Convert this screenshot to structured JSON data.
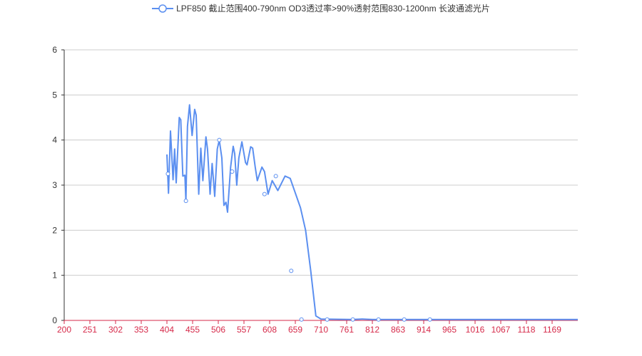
{
  "chart_data": {
    "type": "line",
    "series": [
      {
        "name": "LPF850 截止范围400-790nm OD3透过率>90%透射范围830-1200nm 长波通滤光片",
        "color": "#5b8ff0",
        "points": [
          [
            400,
            3.68
          ],
          [
            403,
            2.82
          ],
          [
            407,
            4.2
          ],
          [
            412,
            3.12
          ],
          [
            415,
            3.8
          ],
          [
            418,
            3.05
          ],
          [
            424,
            4.5
          ],
          [
            427,
            4.45
          ],
          [
            431,
            3.2
          ],
          [
            435,
            3.22
          ],
          [
            437,
            2.65
          ],
          [
            440,
            4.3
          ],
          [
            444,
            4.78
          ],
          [
            449,
            4.1
          ],
          [
            454,
            4.68
          ],
          [
            457,
            4.55
          ],
          [
            462,
            2.8
          ],
          [
            466,
            3.82
          ],
          [
            470,
            3.1
          ],
          [
            476,
            4.07
          ],
          [
            479,
            3.8
          ],
          [
            484,
            2.8
          ],
          [
            488,
            3.48
          ],
          [
            493,
            2.75
          ],
          [
            498,
            3.8
          ],
          [
            502,
            4.0
          ],
          [
            507,
            3.6
          ],
          [
            511,
            2.55
          ],
          [
            515,
            2.62
          ],
          [
            518,
            2.4
          ],
          [
            524,
            3.4
          ],
          [
            529,
            3.86
          ],
          [
            532,
            3.7
          ],
          [
            536,
            3.0
          ],
          [
            540,
            3.6
          ],
          [
            546,
            3.96
          ],
          [
            553,
            3.5
          ],
          [
            556,
            3.45
          ],
          [
            563,
            3.85
          ],
          [
            567,
            3.82
          ],
          [
            572,
            3.4
          ],
          [
            576,
            3.1
          ],
          [
            585,
            3.4
          ],
          [
            590,
            3.3
          ],
          [
            597,
            2.8
          ],
          [
            605,
            3.1
          ],
          [
            616,
            2.88
          ],
          [
            630,
            3.2
          ],
          [
            640,
            3.15
          ],
          [
            660,
            2.5
          ],
          [
            670,
            2.0
          ],
          [
            680,
            1.1
          ],
          [
            690,
            0.1
          ],
          [
            700,
            0.03
          ],
          [
            760,
            0.02
          ],
          [
            780,
            0.03
          ],
          [
            800,
            0.02
          ],
          [
            850,
            0.02
          ],
          [
            900,
            0.02
          ],
          [
            950,
            0.02
          ],
          [
            1000,
            0.02
          ],
          [
            1050,
            0.02
          ],
          [
            1100,
            0.02
          ],
          [
            1200,
            0.02
          ]
        ],
        "markers": [
          [
            402,
            3.25
          ],
          [
            437,
            2.65
          ],
          [
            502,
            4.0
          ],
          [
            527,
            3.3
          ],
          [
            590,
            2.8
          ],
          [
            612,
            3.2
          ],
          [
            642,
            1.1
          ],
          [
            662,
            0.02
          ],
          [
            712,
            0.02
          ],
          [
            762,
            0.02
          ],
          [
            812,
            0.02
          ],
          [
            862,
            0.02
          ],
          [
            912,
            0.02
          ]
        ]
      }
    ],
    "x_tick_labels": [
      "200",
      "251",
      "302",
      "353",
      "404",
      "455",
      "506",
      "557",
      "608",
      "659",
      "710",
      "761",
      "812",
      "863",
      "914",
      "965",
      "1016",
      "1067",
      "1118",
      "1169"
    ],
    "y_tick_labels": [
      "0",
      "1",
      "2",
      "3",
      "4",
      "5",
      "6"
    ],
    "xlim": [
      200,
      1200
    ],
    "ylim": [
      0,
      6
    ],
    "grid": "horizontal",
    "legend_position": "top-center",
    "colors": {
      "line": "#5b8ff0",
      "x_ticks": "#d62a4a",
      "grid": "#cccccc",
      "axis": "#333333"
    }
  }
}
